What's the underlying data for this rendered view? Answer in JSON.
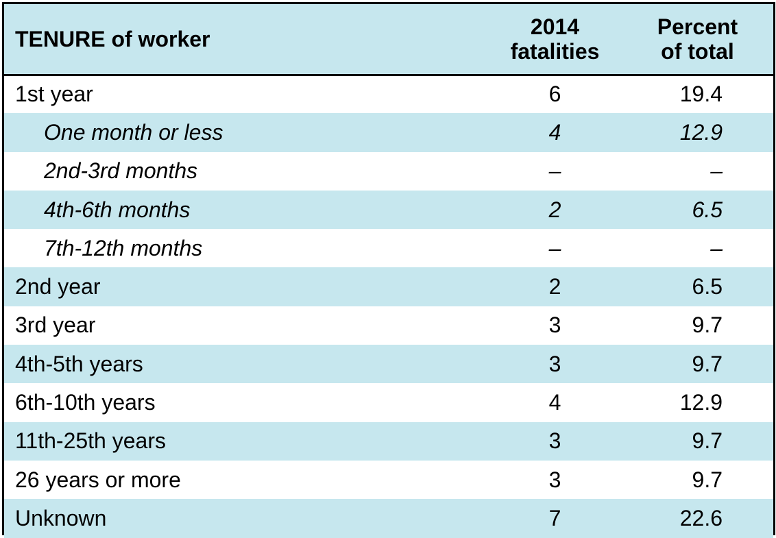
{
  "header": {
    "col1": "TENURE of worker",
    "col2_line1": "2014",
    "col2_line2": "fatalities",
    "col3_line1": "Percent",
    "col3_line2": "of total"
  },
  "rows": [
    {
      "label": "1st year",
      "fatalities": "6",
      "percent": "19.4"
    },
    {
      "label": "One month or less",
      "fatalities": "4",
      "percent": "12.9"
    },
    {
      "label": "2nd-3rd months",
      "fatalities": "–",
      "percent": "–"
    },
    {
      "label": "4th-6th months",
      "fatalities": "2",
      "percent": "6.5"
    },
    {
      "label": "7th-12th months",
      "fatalities": "–",
      "percent": "–"
    },
    {
      "label": "2nd year",
      "fatalities": "2",
      "percent": "6.5"
    },
    {
      "label": "3rd year",
      "fatalities": "3",
      "percent": "9.7"
    },
    {
      "label": "4th-5th years",
      "fatalities": "3",
      "percent": "9.7"
    },
    {
      "label": "6th-10th years",
      "fatalities": "4",
      "percent": "12.9"
    },
    {
      "label": "11th-25th years",
      "fatalities": "3",
      "percent": "9.7"
    },
    {
      "label": "26 years or more",
      "fatalities": "3",
      "percent": "9.7"
    },
    {
      "label": "Unknown",
      "fatalities": "7",
      "percent": "22.6"
    }
  ],
  "colors": {
    "row_shade": "#c6e7ee",
    "border": "#000000"
  }
}
